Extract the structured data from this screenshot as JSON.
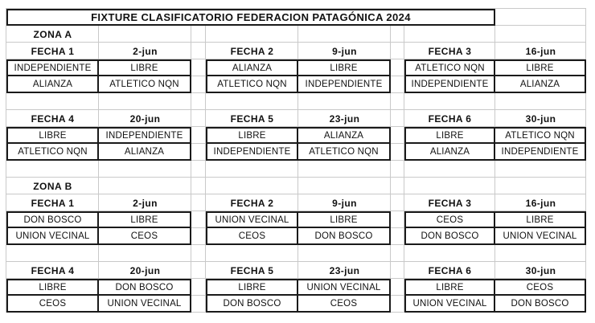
{
  "title": "FIXTURE CLASIFICATORIO FEDERACION PATAGÓNICA 2024",
  "colors": {
    "background": "#ffffff",
    "grid_line": "#c9c9c9",
    "block_border": "#1a1a1a",
    "text": "#111111"
  },
  "zones": [
    {
      "name": "ZONA A",
      "fixtures": [
        {
          "label": "FECHA 1",
          "date": "2-jun",
          "matches": [
            [
              "INDEPENDIENTE",
              "LIBRE"
            ],
            [
              "ALIANZA",
              "ATLETICO NQN"
            ]
          ]
        },
        {
          "label": "FECHA 2",
          "date": "9-jun",
          "matches": [
            [
              "ALIANZA",
              "LIBRE"
            ],
            [
              "ATLETICO NQN",
              "INDEPENDIENTE"
            ]
          ]
        },
        {
          "label": "FECHA 3",
          "date": "16-jun",
          "matches": [
            [
              "ATLETICO NQN",
              "LIBRE"
            ],
            [
              "INDEPENDIENTE",
              "ALIANZA"
            ]
          ]
        },
        {
          "label": "FECHA 4",
          "date": "20-jun",
          "matches": [
            [
              "LIBRE",
              "INDEPENDIENTE"
            ],
            [
              "ATLETICO NQN",
              "ALIANZA"
            ]
          ]
        },
        {
          "label": "FECHA 5",
          "date": "23-jun",
          "matches": [
            [
              "LIBRE",
              "ALIANZA"
            ],
            [
              "INDEPENDIENTE",
              "ATLETICO NQN"
            ]
          ]
        },
        {
          "label": "FECHA 6",
          "date": "30-jun",
          "matches": [
            [
              "LIBRE",
              "ATLETICO NQN"
            ],
            [
              "ALIANZA",
              "INDEPENDIENTE"
            ]
          ]
        }
      ]
    },
    {
      "name": "ZONA B",
      "fixtures": [
        {
          "label": "FECHA 1",
          "date": "2-jun",
          "matches": [
            [
              "DON BOSCO",
              "LIBRE"
            ],
            [
              "UNION VECINAL",
              "CEOS"
            ]
          ]
        },
        {
          "label": "FECHA 2",
          "date": "9-jun",
          "matches": [
            [
              "UNION VECINAL",
              "LIBRE"
            ],
            [
              "CEOS",
              "DON BOSCO"
            ]
          ]
        },
        {
          "label": "FECHA 3",
          "date": "16-jun",
          "matches": [
            [
              "CEOS",
              "LIBRE"
            ],
            [
              "DON BOSCO",
              "UNION VECINAL"
            ]
          ]
        },
        {
          "label": "FECHA 4",
          "date": "20-jun",
          "matches": [
            [
              "LIBRE",
              "DON BOSCO"
            ],
            [
              "CEOS",
              "UNION VECINAL"
            ]
          ]
        },
        {
          "label": "FECHA 5",
          "date": "23-jun",
          "matches": [
            [
              "LIBRE",
              "UNION VECINAL"
            ],
            [
              "DON BOSCO",
              "CEOS"
            ]
          ]
        },
        {
          "label": "FECHA 6",
          "date": "30-jun",
          "matches": [
            [
              "LIBRE",
              "CEOS"
            ],
            [
              "UNION VECINAL",
              "DON BOSCO"
            ]
          ]
        }
      ]
    }
  ]
}
